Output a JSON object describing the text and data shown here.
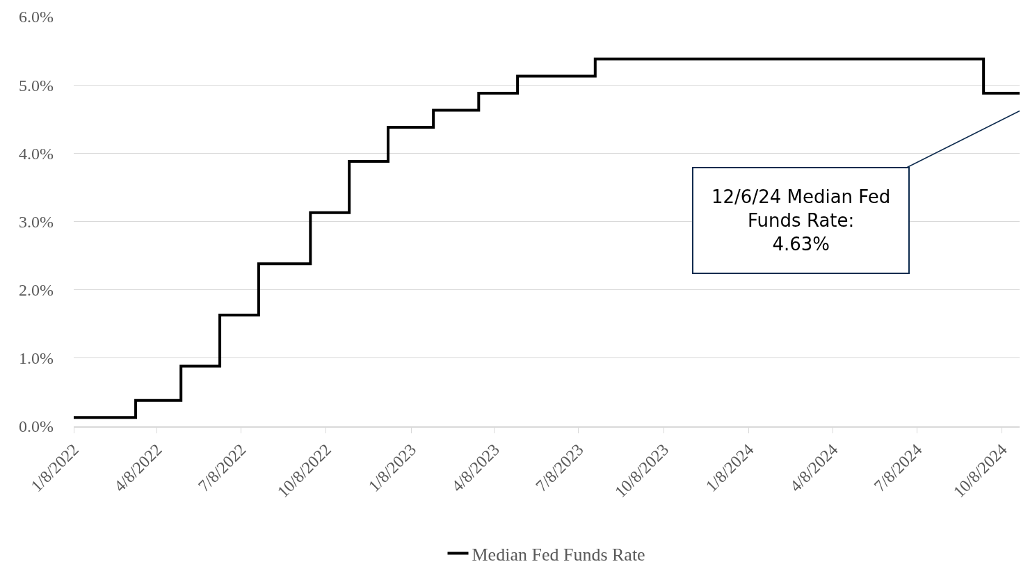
{
  "chart_data": {
    "type": "step",
    "x": [
      "2022-01-08",
      "2022-03-16",
      "2022-05-04",
      "2022-06-15",
      "2022-07-27",
      "2022-09-21",
      "2022-11-02",
      "2022-12-14",
      "2023-02-01",
      "2023-03-22",
      "2023-05-03",
      "2023-07-26",
      "2024-09-18",
      "2024-10-27"
    ],
    "series": [
      {
        "name": "Median Fed Funds Rate",
        "color": "#000000",
        "values": [
          0.13,
          0.38,
          0.88,
          1.63,
          2.38,
          3.13,
          3.88,
          4.38,
          4.63,
          4.88,
          5.13,
          5.38,
          4.88,
          4.88
        ]
      }
    ],
    "xlim": [
      "2022-01-08",
      "2024-10-27"
    ],
    "xticks": [
      {
        "value": "2022-01-08",
        "label": "1/8/2022"
      },
      {
        "value": "2022-04-08",
        "label": "4/8/2022"
      },
      {
        "value": "2022-07-08",
        "label": "7/8/2022"
      },
      {
        "value": "2022-10-08",
        "label": "10/8/2022"
      },
      {
        "value": "2023-01-08",
        "label": "1/8/2023"
      },
      {
        "value": "2023-04-08",
        "label": "4/8/2023"
      },
      {
        "value": "2023-07-08",
        "label": "7/8/2023"
      },
      {
        "value": "2023-10-08",
        "label": "10/8/2023"
      },
      {
        "value": "2024-01-08",
        "label": "1/8/2024"
      },
      {
        "value": "2024-04-08",
        "label": "4/8/2024"
      },
      {
        "value": "2024-07-08",
        "label": "7/8/2024"
      },
      {
        "value": "2024-10-08",
        "label": "10/8/2024"
      }
    ],
    "ylim": [
      0,
      6
    ],
    "yticks": [
      {
        "value": 0,
        "label": "0.0%"
      },
      {
        "value": 1,
        "label": "1.0%"
      },
      {
        "value": 2,
        "label": "2.0%"
      },
      {
        "value": 3,
        "label": "3.0%"
      },
      {
        "value": 4,
        "label": "4.0%"
      },
      {
        "value": 5,
        "label": "5.0%"
      },
      {
        "value": 6,
        "label": "6.0%"
      }
    ],
    "annotations": [
      "12/6/24 Median Fed\nFunds Rate:\n4.63%"
    ],
    "grid": "y",
    "legend": "bottom",
    "marker": "none",
    "line_style": "solid"
  }
}
